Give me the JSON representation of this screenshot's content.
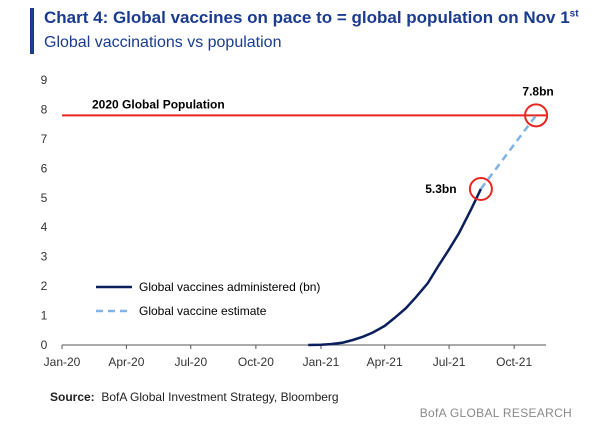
{
  "chart_data": {
    "type": "line",
    "title_main": "Chart 4: Global vaccines on pace to = global population on Nov 1",
    "title_sup": "st",
    "subtitle": "Global vaccinations vs population",
    "x_tick_labels": [
      "Jan-20",
      "Apr-20",
      "Jul-20",
      "Oct-20",
      "Jan-21",
      "Apr-21",
      "Jul-21",
      "Oct-21"
    ],
    "x_range": [
      "2020-01-01",
      "2021-11-15"
    ],
    "ylim": [
      0,
      9
    ],
    "y_ticks": [
      0,
      1,
      2,
      3,
      4,
      5,
      6,
      7,
      8,
      9
    ],
    "grid": false,
    "series": [
      {
        "name": "Global vaccines administered (bn)",
        "color": "#0b1f5c",
        "style": "solid",
        "x": [
          "2020-12-14",
          "2021-01-01",
          "2021-01-15",
          "2021-02-01",
          "2021-02-15",
          "2021-03-01",
          "2021-03-15",
          "2021-04-01",
          "2021-04-15",
          "2021-05-01",
          "2021-05-15",
          "2021-06-01",
          "2021-06-15",
          "2021-07-01",
          "2021-07-15",
          "2021-08-01",
          "2021-08-15"
        ],
        "y": [
          0.0,
          0.01,
          0.03,
          0.08,
          0.17,
          0.28,
          0.42,
          0.65,
          0.92,
          1.25,
          1.62,
          2.1,
          2.65,
          3.25,
          3.8,
          4.6,
          5.3
        ]
      },
      {
        "name": "Global vaccine estimate",
        "color": "#7fb2e5",
        "style": "dashed",
        "x": [
          "2021-08-15",
          "2021-11-01"
        ],
        "y": [
          5.3,
          7.8
        ]
      }
    ],
    "reference_line": {
      "label": "2020 Global Population",
      "value": 7.8,
      "color": "#e8251f"
    },
    "annotations": [
      {
        "text": "5.3bn",
        "x": "2021-08-15",
        "y": 5.3,
        "color": "#e8251f"
      },
      {
        "text": "7.8bn",
        "x": "2021-11-01",
        "y": 7.8,
        "color": "#e8251f"
      }
    ],
    "legend_position": "bottom-left"
  },
  "source_label": "Source:",
  "source_text": "BofA Global Investment Strategy, Bloomberg",
  "footer": "BofA GLOBAL RESEARCH"
}
